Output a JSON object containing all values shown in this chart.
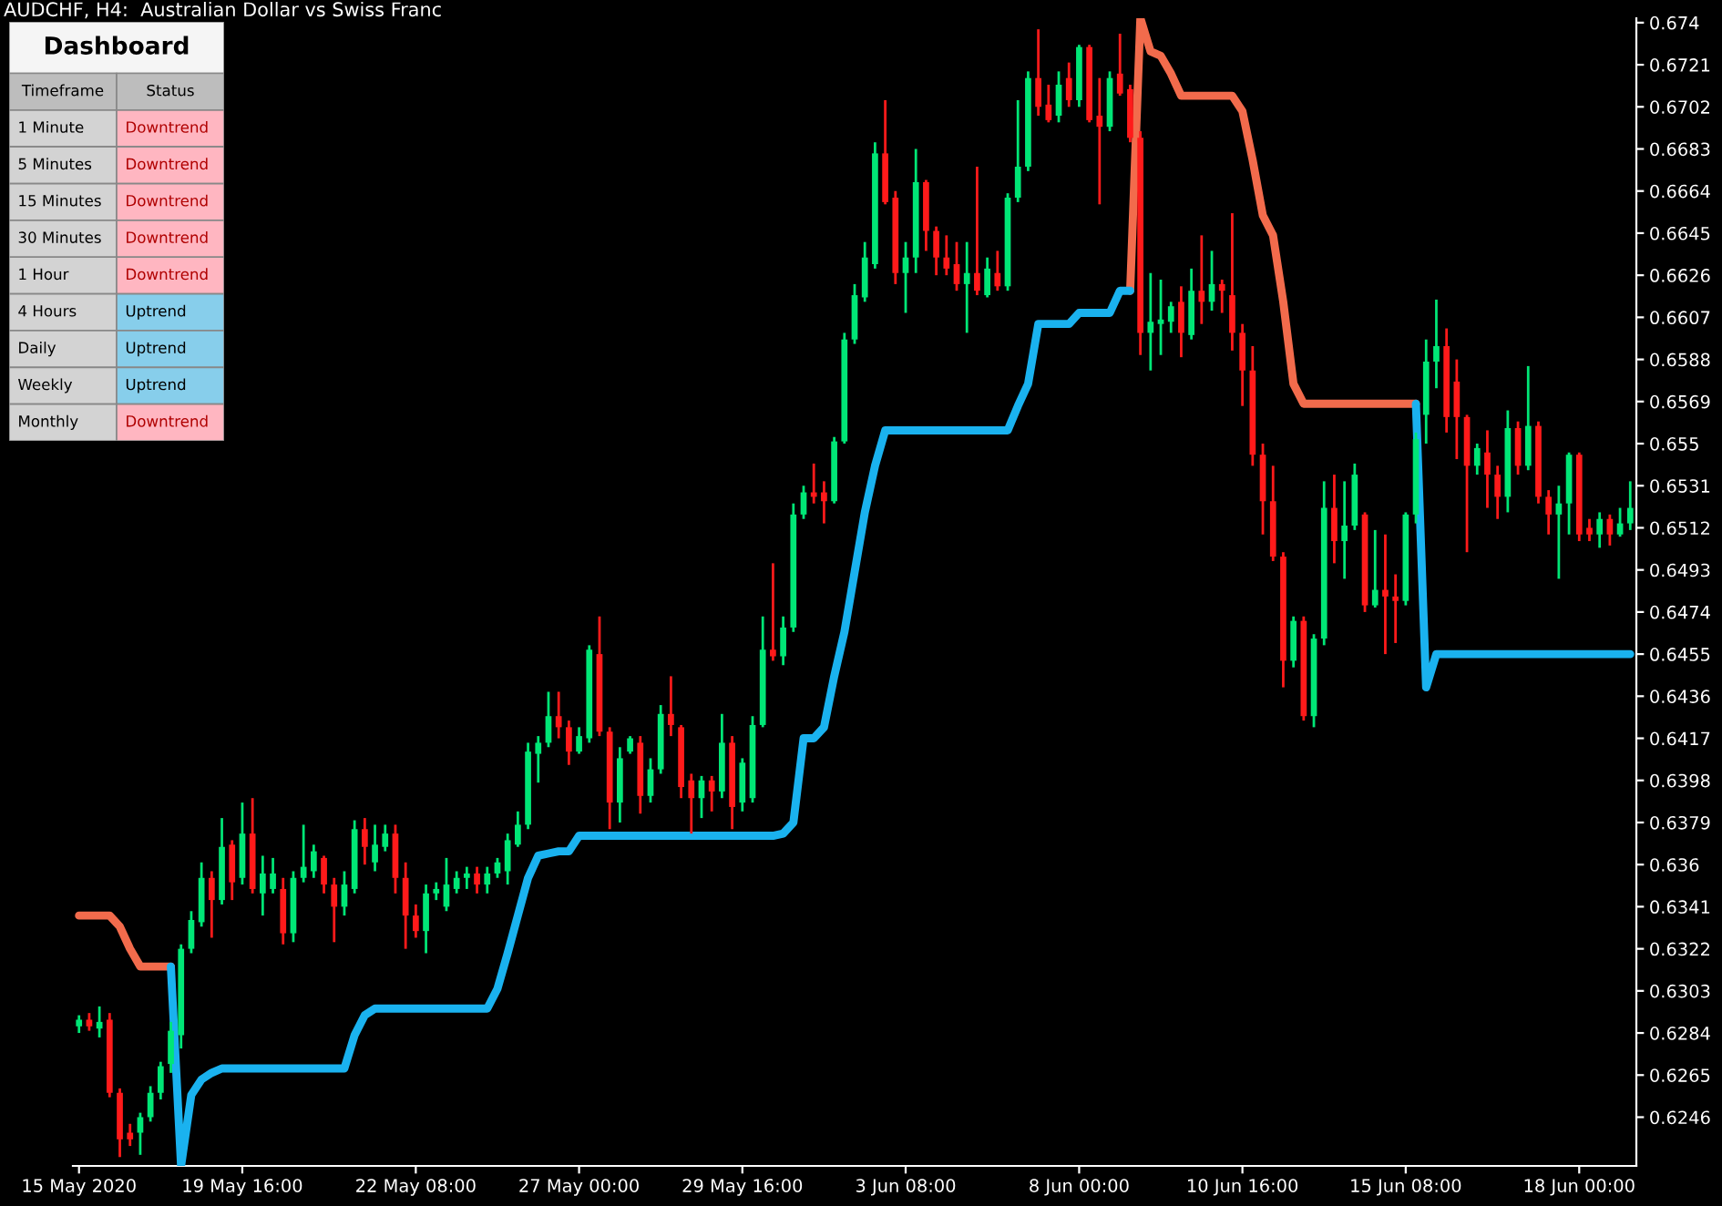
{
  "chart_data": [
    {
      "type": "candlestick",
      "title": "AUDCHF, H4:  Australian Dollar vs Swiss Franc",
      "categories": [
        "15 May 2020",
        null,
        null,
        null,
        null,
        null,
        null,
        null,
        null,
        null,
        null,
        null,
        null,
        null,
        null,
        null,
        "19 May 16:00",
        null,
        null,
        null,
        null,
        null,
        null,
        null,
        null,
        null,
        null,
        null,
        null,
        null,
        null,
        null,
        null,
        "22 May 08:00",
        null,
        null,
        null,
        null,
        null,
        null,
        null,
        null,
        null,
        null,
        null,
        null,
        null,
        null,
        null,
        "27 May 00:00",
        null,
        null,
        null,
        null,
        null,
        null,
        null,
        null,
        null,
        null,
        null,
        null,
        null,
        null,
        null,
        "29 May 16:00",
        null,
        null,
        null,
        null,
        null,
        null,
        null,
        null,
        null,
        null,
        null,
        null,
        null,
        null,
        null,
        "3 Jun 08:00",
        null,
        null,
        null,
        null,
        null,
        null,
        null,
        null,
        null,
        null,
        null,
        null,
        null,
        null,
        null,
        null,
        "8 Jun 00:00",
        null,
        null,
        null,
        null,
        null,
        null,
        null,
        null,
        null,
        null,
        null,
        null,
        null,
        null,
        null,
        "10 Jun 16:00",
        null,
        null,
        null,
        null,
        null,
        null,
        null,
        null,
        null,
        null,
        null,
        null,
        null,
        null,
        null,
        "15 Jun 08:00",
        null,
        null,
        null,
        null,
        null,
        null,
        null,
        null,
        null,
        null,
        null,
        null,
        null,
        null,
        null,
        null,
        "18 Jun 00:00",
        null,
        null,
        null,
        null,
        null
      ],
      "colors": [
        "#00e676",
        "#ff1a1a",
        "#00e676",
        "#ff1a1a",
        "#ff1a1a",
        "#ff1a1a",
        "#00e676",
        "#00e676",
        "#00e676",
        "#00e676",
        "#00e676",
        "#00e676",
        "#00e676",
        "#ff1a1a",
        "#00e676",
        "#ff1a1a",
        "#00e676",
        "#ff1a1a",
        "#00e676",
        "#00e676",
        "#ff1a1a",
        "#00e676",
        "#00e676",
        "#00e676",
        "#ff1a1a",
        "#ff1a1a",
        "#00e676",
        "#00e676",
        "#ff1a1a",
        "#00e676",
        "#00e676",
        "#ff1a1a",
        "#ff1a1a",
        "#ff1a1a",
        "#00e676",
        "#00e676",
        "#00e676",
        "#00e676",
        "#00e676",
        "#ff1a1a",
        "#00e676",
        "#00e676",
        "#00e676",
        "#00e676",
        "#00e676",
        "#00e676",
        "#00e676",
        "#ff1a1a",
        "#ff1a1a",
        "#00e676",
        "#00e676",
        "#ff1a1a",
        "#ff1a1a",
        "#00e676",
        "#00e676",
        "#ff1a1a",
        "#00e676",
        "#00e676",
        "#ff1a1a",
        "#ff1a1a",
        "#ff1a1a",
        "#00e676",
        "#ff1a1a",
        "#00e676",
        "#ff1a1a",
        "#00e676",
        "#00e676",
        "#00e676",
        "#ff1a1a",
        "#00e676",
        "#00e676",
        "#00e676",
        "#ff1a1a",
        "#ff1a1a",
        "#00e676",
        "#00e676",
        "#00e676",
        "#00e676",
        "#00e676",
        "#ff1a1a",
        "#ff1a1a",
        "#00e676",
        "#00e676",
        "#ff1a1a",
        "#ff1a1a",
        "#ff1a1a",
        "#ff1a1a",
        "#00e676",
        "#ff1a1a",
        "#00e676",
        "#ff1a1a",
        "#00e676",
        "#00e676",
        "#00e676",
        "#ff1a1a",
        "#ff1a1a",
        "#00e676",
        "#ff1a1a",
        "#00e676",
        "#ff1a1a",
        "#ff1a1a",
        "#00e676",
        "#ff1a1a",
        "#ff1a1a",
        "#ff1a1a",
        "#00e676",
        "#00e676",
        "#00e676",
        "#ff1a1a",
        "#00e676",
        "#ff1a1a",
        "#00e676",
        "#ff1a1a",
        "#ff1a1a",
        "#ff1a1a",
        "#ff1a1a",
        "#ff1a1a",
        "#ff1a1a",
        "#ff1a1a",
        "#00e676",
        "#ff1a1a",
        "#00e676",
        "#00e676",
        "#ff1a1a",
        "#00e676",
        "#00e676",
        "#ff1a1a",
        "#00e676",
        "#ff1a1a",
        "#ff1a1a",
        "#00e676",
        "#00e676",
        "#00e676",
        "#00e676",
        "#ff1a1a",
        "#ff1a1a",
        "#ff1a1a",
        "#00e676",
        "#ff1a1a",
        "#ff1a1a",
        "#00e676",
        "#ff1a1a",
        "#00e676",
        "#ff1a1a",
        "#ff1a1a",
        "#00e676",
        "#00e676",
        "#ff1a1a",
        "#ff1a1a",
        "#00e676",
        "#ff1a1a",
        "#00e676",
        "#00e676"
      ],
      "ohlc": [
        [
          0.6287,
          0.6292,
          0.6284,
          0.629
        ],
        [
          0.629,
          0.6293,
          0.6285,
          0.6287
        ],
        [
          0.6286,
          0.6296,
          0.6282,
          0.6289
        ],
        [
          0.629,
          0.6293,
          0.6255,
          0.6257
        ],
        [
          0.6257,
          0.6259,
          0.6228,
          0.6236
        ],
        [
          0.6239,
          0.6243,
          0.6233,
          0.6236
        ],
        [
          0.6239,
          0.6248,
          0.6229,
          0.6246
        ],
        [
          0.6246,
          0.626,
          0.6244,
          0.6257
        ],
        [
          0.6257,
          0.6271,
          0.6254,
          0.6269
        ],
        [
          0.627,
          0.6289,
          0.6266,
          0.6285
        ],
        [
          0.6283,
          0.6324,
          0.6277,
          0.6322
        ],
        [
          0.6322,
          0.6339,
          0.632,
          0.6335
        ],
        [
          0.6334,
          0.6361,
          0.6332,
          0.6354
        ],
        [
          0.6354,
          0.6357,
          0.6327,
          0.6344
        ],
        [
          0.6344,
          0.6381,
          0.6342,
          0.6368
        ],
        [
          0.6369,
          0.6371,
          0.6344,
          0.6352
        ],
        [
          0.6354,
          0.6388,
          0.6351,
          0.6374
        ],
        [
          0.6374,
          0.639,
          0.6347,
          0.6349
        ],
        [
          0.6347,
          0.6364,
          0.6337,
          0.6356
        ],
        [
          0.6349,
          0.6363,
          0.6347,
          0.6356
        ],
        [
          0.6349,
          0.6354,
          0.6324,
          0.6329
        ],
        [
          0.6329,
          0.6357,
          0.6325,
          0.6354
        ],
        [
          0.6354,
          0.6378,
          0.6352,
          0.6359
        ],
        [
          0.6357,
          0.6369,
          0.6354,
          0.6366
        ],
        [
          0.6363,
          0.6364,
          0.6347,
          0.6351
        ],
        [
          0.6351,
          0.6354,
          0.6325,
          0.6341
        ],
        [
          0.6341,
          0.6357,
          0.6337,
          0.6351
        ],
        [
          0.6349,
          0.638,
          0.6347,
          0.6376
        ],
        [
          0.6376,
          0.6381,
          0.636,
          0.6368
        ],
        [
          0.6361,
          0.6378,
          0.6357,
          0.6369
        ],
        [
          0.6368,
          0.6378,
          0.6366,
          0.6374
        ],
        [
          0.6374,
          0.6378,
          0.6347,
          0.6354
        ],
        [
          0.6354,
          0.6361,
          0.6322,
          0.6337
        ],
        [
          0.6337,
          0.6342,
          0.6327,
          0.633
        ],
        [
          0.633,
          0.6351,
          0.632,
          0.6347
        ],
        [
          0.6347,
          0.6352,
          0.6344,
          0.6349
        ],
        [
          0.6341,
          0.6363,
          0.6339,
          0.6351
        ],
        [
          0.6349,
          0.6357,
          0.6347,
          0.6354
        ],
        [
          0.6354,
          0.6359,
          0.6349,
          0.6356
        ],
        [
          0.6356,
          0.6359,
          0.6347,
          0.6351
        ],
        [
          0.6351,
          0.6359,
          0.6347,
          0.6356
        ],
        [
          0.6356,
          0.6363,
          0.6354,
          0.6361
        ],
        [
          0.6357,
          0.6374,
          0.6351,
          0.6371
        ],
        [
          0.6369,
          0.6384,
          0.6368,
          0.6378
        ],
        [
          0.6378,
          0.6415,
          0.6376,
          0.6411
        ],
        [
          0.641,
          0.6418,
          0.6397,
          0.6415
        ],
        [
          0.6415,
          0.6438,
          0.6413,
          0.6427
        ],
        [
          0.6427,
          0.6438,
          0.6417,
          0.6422
        ],
        [
          0.6422,
          0.6425,
          0.6405,
          0.6411
        ],
        [
          0.6411,
          0.6422,
          0.641,
          0.6418
        ],
        [
          0.6417,
          0.6459,
          0.6415,
          0.6457
        ],
        [
          0.6455,
          0.6472,
          0.6418,
          0.642
        ],
        [
          0.642,
          0.6422,
          0.6376,
          0.6388
        ],
        [
          0.6388,
          0.6413,
          0.6379,
          0.6408
        ],
        [
          0.6411,
          0.6418,
          0.641,
          0.6417
        ],
        [
          0.6415,
          0.6418,
          0.6383,
          0.6391
        ],
        [
          0.6391,
          0.6408,
          0.6388,
          0.6403
        ],
        [
          0.6403,
          0.6432,
          0.6401,
          0.6428
        ],
        [
          0.6428,
          0.6445,
          0.6418,
          0.6423
        ],
        [
          0.6422,
          0.6423,
          0.639,
          0.6395
        ],
        [
          0.6398,
          0.6401,
          0.6374,
          0.639
        ],
        [
          0.639,
          0.64,
          0.6381,
          0.6398
        ],
        [
          0.6398,
          0.64,
          0.6384,
          0.6393
        ],
        [
          0.6393,
          0.6428,
          0.639,
          0.6415
        ],
        [
          0.6415,
          0.6418,
          0.6376,
          0.6386
        ],
        [
          0.6388,
          0.6408,
          0.6384,
          0.6406
        ],
        [
          0.639,
          0.6427,
          0.6388,
          0.6423
        ],
        [
          0.6423,
          0.6472,
          0.6422,
          0.6457
        ],
        [
          0.6457,
          0.6496,
          0.6452,
          0.6454
        ],
        [
          0.6454,
          0.6472,
          0.645,
          0.6467
        ],
        [
          0.6467,
          0.6523,
          0.6465,
          0.6518
        ],
        [
          0.6518,
          0.6531,
          0.6516,
          0.6528
        ],
        [
          0.6528,
          0.6541,
          0.6523,
          0.6526
        ],
        [
          0.6528,
          0.6533,
          0.6514,
          0.6524
        ],
        [
          0.6524,
          0.6553,
          0.6523,
          0.6551
        ],
        [
          0.6551,
          0.66,
          0.655,
          0.6597
        ],
        [
          0.6597,
          0.6622,
          0.6595,
          0.6617
        ],
        [
          0.6616,
          0.6641,
          0.6614,
          0.6634
        ],
        [
          0.6631,
          0.6686,
          0.6629,
          0.6681
        ],
        [
          0.6681,
          0.6705,
          0.6658,
          0.6659
        ],
        [
          0.6661,
          0.6664,
          0.6622,
          0.6627
        ],
        [
          0.6627,
          0.6641,
          0.6609,
          0.6634
        ],
        [
          0.6634,
          0.6683,
          0.6627,
          0.6668
        ],
        [
          0.6668,
          0.6669,
          0.6637,
          0.6646
        ],
        [
          0.6646,
          0.6648,
          0.6626,
          0.6634
        ],
        [
          0.6634,
          0.6644,
          0.6626,
          0.6629
        ],
        [
          0.6631,
          0.6641,
          0.6619,
          0.6622
        ],
        [
          0.6622,
          0.6641,
          0.66,
          0.6627
        ],
        [
          0.6627,
          0.6675,
          0.6617,
          0.6619
        ],
        [
          0.6617,
          0.6634,
          0.6616,
          0.6629
        ],
        [
          0.6627,
          0.6637,
          0.6619,
          0.6621
        ],
        [
          0.6621,
          0.6663,
          0.6619,
          0.6661
        ],
        [
          0.6661,
          0.6705,
          0.6659,
          0.6675
        ],
        [
          0.6675,
          0.6718,
          0.6673,
          0.6715
        ],
        [
          0.6715,
          0.6737,
          0.6698,
          0.6702
        ],
        [
          0.6703,
          0.6712,
          0.6695,
          0.6696
        ],
        [
          0.6698,
          0.6718,
          0.6695,
          0.6712
        ],
        [
          0.6715,
          0.6722,
          0.6702,
          0.6705
        ],
        [
          0.6705,
          0.673,
          0.6702,
          0.6729
        ],
        [
          0.6729,
          0.673,
          0.6695,
          0.6696
        ],
        [
          0.6698,
          0.6715,
          0.6658,
          0.6693
        ],
        [
          0.6693,
          0.6718,
          0.6691,
          0.6715
        ],
        [
          0.6717,
          0.6735,
          0.6707,
          0.6708
        ],
        [
          0.671,
          0.6712,
          0.6686,
          0.6688
        ],
        [
          0.6688,
          0.6691,
          0.659,
          0.66
        ],
        [
          0.66,
          0.6627,
          0.6583,
          0.6605
        ],
        [
          0.6604,
          0.6624,
          0.659,
          0.6606
        ],
        [
          0.6605,
          0.6614,
          0.66,
          0.6612
        ],
        [
          0.6614,
          0.6621,
          0.6589,
          0.66
        ],
        [
          0.6599,
          0.6629,
          0.6597,
          0.6619
        ],
        [
          0.6619,
          0.6644,
          0.6604,
          0.6614
        ],
        [
          0.6614,
          0.6637,
          0.661,
          0.6622
        ],
        [
          0.6622,
          0.6624,
          0.6609,
          0.6619
        ],
        [
          0.6617,
          0.6654,
          0.6592,
          0.66
        ],
        [
          0.66,
          0.6604,
          0.6567,
          0.6583
        ],
        [
          0.6583,
          0.6594,
          0.654,
          0.6545
        ],
        [
          0.6545,
          0.655,
          0.6509,
          0.6524
        ],
        [
          0.6524,
          0.654,
          0.6497,
          0.6499
        ],
        [
          0.6499,
          0.6501,
          0.644,
          0.6452
        ],
        [
          0.6452,
          0.6472,
          0.6449,
          0.647
        ],
        [
          0.647,
          0.6472,
          0.6425,
          0.6427
        ],
        [
          0.6427,
          0.6464,
          0.6422,
          0.6462
        ],
        [
          0.6462,
          0.6533,
          0.6459,
          0.6521
        ],
        [
          0.6521,
          0.6536,
          0.6496,
          0.6506
        ],
        [
          0.6506,
          0.6533,
          0.6489,
          0.6513
        ],
        [
          0.6513,
          0.6541,
          0.6511,
          0.6536
        ],
        [
          0.6518,
          0.6519,
          0.6474,
          0.6477
        ],
        [
          0.6477,
          0.6511,
          0.6476,
          0.6484
        ],
        [
          0.6484,
          0.6509,
          0.6455,
          0.6481
        ],
        [
          0.6481,
          0.6491,
          0.646,
          0.6479
        ],
        [
          0.6479,
          0.6519,
          0.6477,
          0.6518
        ],
        [
          0.6518,
          0.6555,
          0.6514,
          0.6552
        ],
        [
          0.6563,
          0.6597,
          0.655,
          0.6587
        ],
        [
          0.6587,
          0.6615,
          0.6575,
          0.6594
        ],
        [
          0.6594,
          0.6602,
          0.6555,
          0.6562
        ],
        [
          0.6578,
          0.6588,
          0.6543,
          0.6562
        ],
        [
          0.6562,
          0.6563,
          0.6501,
          0.654
        ],
        [
          0.654,
          0.655,
          0.6536,
          0.6548
        ],
        [
          0.6546,
          0.6556,
          0.6521,
          0.6536
        ],
        [
          0.6536,
          0.654,
          0.6516,
          0.6526
        ],
        [
          0.6526,
          0.6565,
          0.6519,
          0.6557
        ],
        [
          0.6557,
          0.656,
          0.6536,
          0.654
        ],
        [
          0.654,
          0.6585,
          0.6538,
          0.6558
        ],
        [
          0.6558,
          0.656,
          0.6523,
          0.6526
        ],
        [
          0.6526,
          0.6529,
          0.6509,
          0.6518
        ],
        [
          0.6518,
          0.6531,
          0.6489,
          0.6523
        ],
        [
          0.6523,
          0.6546,
          0.6509,
          0.6545
        ],
        [
          0.6545,
          0.6546,
          0.6506,
          0.6509
        ],
        [
          0.6512,
          0.6516,
          0.6506,
          0.6509
        ],
        [
          0.6509,
          0.6519,
          0.6503,
          0.6516
        ],
        [
          0.6516,
          0.6518,
          0.6504,
          0.6509
        ],
        [
          0.6509,
          0.6521,
          0.6508,
          0.6514
        ],
        [
          0.6514,
          0.6533,
          0.6511,
          0.6521
        ]
      ],
      "series": [
        {
          "type": "line",
          "color": "#f26b4c",
          "values": [
            0.6337,
            0.6337,
            0.6337,
            0.6337,
            0.6332,
            0.6322,
            0.6314,
            0.6314,
            0.6314,
            0.6314,
            null,
            null,
            null,
            null,
            null,
            null,
            null,
            null,
            null,
            null,
            null,
            null,
            null,
            null,
            null,
            null,
            null,
            null,
            null,
            null,
            null,
            null,
            null,
            null,
            null,
            null,
            null,
            null,
            null,
            null,
            null,
            null,
            null,
            null,
            null,
            null,
            null,
            null,
            null,
            null,
            null,
            null,
            null,
            null,
            null,
            null,
            null,
            null,
            null,
            null,
            null,
            null,
            null,
            null,
            null,
            null,
            null,
            null,
            null,
            null,
            null,
            null,
            null,
            null,
            null,
            null,
            null,
            null,
            null,
            null,
            null,
            null,
            null,
            null,
            null,
            null,
            null,
            null,
            null,
            null,
            null,
            null,
            null,
            null,
            null,
            null,
            null,
            null,
            null,
            null,
            null,
            null,
            null,
            0.6619,
            0.6742,
            0.6727,
            0.6725,
            0.6717,
            0.6707,
            0.6707,
            0.6707,
            0.6707,
            0.6707,
            0.6707,
            0.67,
            0.6678,
            0.6653,
            0.6644,
            0.6614,
            0.6577,
            0.6568,
            0.6568,
            0.6568,
            0.6568,
            0.6568,
            0.6568,
            0.6568,
            0.6568,
            0.6568,
            0.6568,
            0.6568,
            0.6568,
            null,
            null,
            null,
            null,
            null,
            null,
            null,
            null,
            null,
            null,
            null,
            null,
            null,
            null,
            null,
            null,
            null,
            null,
            null,
            null,
            null
          ]
        },
        {
          "type": "line",
          "color": "#1ab2ef",
          "values": [
            null,
            null,
            null,
            null,
            null,
            null,
            null,
            null,
            null,
            0.6314,
            0.6224,
            0.6256,
            0.6263,
            0.6266,
            0.6268,
            0.6268,
            0.6268,
            0.6268,
            0.6268,
            0.6268,
            0.6268,
            0.6268,
            0.6268,
            0.6268,
            0.6268,
            0.6268,
            0.6268,
            0.6283,
            0.6292,
            0.6295,
            0.6295,
            0.6295,
            0.6295,
            0.6295,
            0.6295,
            0.6295,
            0.6295,
            0.6295,
            0.6295,
            0.6295,
            0.6295,
            0.6304,
            0.632,
            0.6337,
            0.6354,
            0.6364,
            0.6365,
            0.6366,
            0.6366,
            0.6373,
            0.6373,
            0.6373,
            0.6373,
            0.6373,
            0.6373,
            0.6373,
            0.6373,
            0.6373,
            0.6373,
            0.6373,
            0.6373,
            0.6373,
            0.6373,
            0.6373,
            0.6373,
            0.6373,
            0.6373,
            0.6373,
            0.6373,
            0.6374,
            0.6379,
            0.6417,
            0.6417,
            0.6422,
            0.6445,
            0.6465,
            0.6492,
            0.6519,
            0.654,
            0.6556,
            0.6556,
            0.6556,
            0.6556,
            0.6556,
            0.6556,
            0.6556,
            0.6556,
            0.6556,
            0.6556,
            0.6556,
            0.6556,
            0.6556,
            0.6567,
            0.6577,
            0.6604,
            0.6604,
            0.6604,
            0.6604,
            0.6609,
            0.6609,
            0.6609,
            0.6609,
            0.6619,
            0.6619,
            null,
            null,
            null,
            null,
            null,
            null,
            null,
            null,
            null,
            null,
            null,
            null,
            null,
            null,
            null,
            null,
            null,
            null,
            null,
            null,
            null,
            null,
            null,
            null,
            null,
            null,
            null,
            0.6568,
            0.644,
            0.6455,
            0.6455,
            0.6455,
            0.6455,
            0.6455,
            0.6455,
            0.6455,
            0.6455,
            0.6455,
            0.6455,
            0.6455,
            0.6455,
            0.6455,
            0.6455,
            0.6455,
            0.6455,
            0.6455,
            0.6455,
            0.6455,
            0.6455
          ]
        }
      ],
      "ylim": [
        0.6224,
        0.6742
      ],
      "yticks": [
        0.674,
        0.6721,
        0.6702,
        0.6683,
        0.6664,
        0.6645,
        0.6626,
        0.6607,
        0.6588,
        0.6569,
        0.655,
        0.6531,
        0.6512,
        0.6493,
        0.6474,
        0.6455,
        0.6436,
        0.6417,
        0.6398,
        0.6379,
        0.636,
        0.6341,
        0.6322,
        0.6303,
        0.6284,
        0.6265,
        0.6246
      ],
      "grid": false,
      "legend": false
    },
    {
      "type": "other",
      "title": "Dashboard",
      "annotations": [
        "Timeframe",
        "Status",
        "1 Minute",
        "Downtrend",
        "5 Minutes",
        "Downtrend",
        "15 Minutes",
        "Downtrend",
        "30 Minutes",
        "Downtrend",
        "1 Hour",
        "Downtrend",
        "4 Hours",
        "Uptrend",
        "Daily",
        "Uptrend",
        "Weekly",
        "Uptrend",
        "Monthly",
        "Downtrend"
      ],
      "colors": [
        "#ffb6c1",
        "#ffb6c1",
        "#ffb6c1",
        "#ffb6c1",
        "#ffb6c1",
        "#87ceeb",
        "#87ceeb",
        "#87ceeb",
        "#ffb6c1"
      ]
    }
  ]
}
